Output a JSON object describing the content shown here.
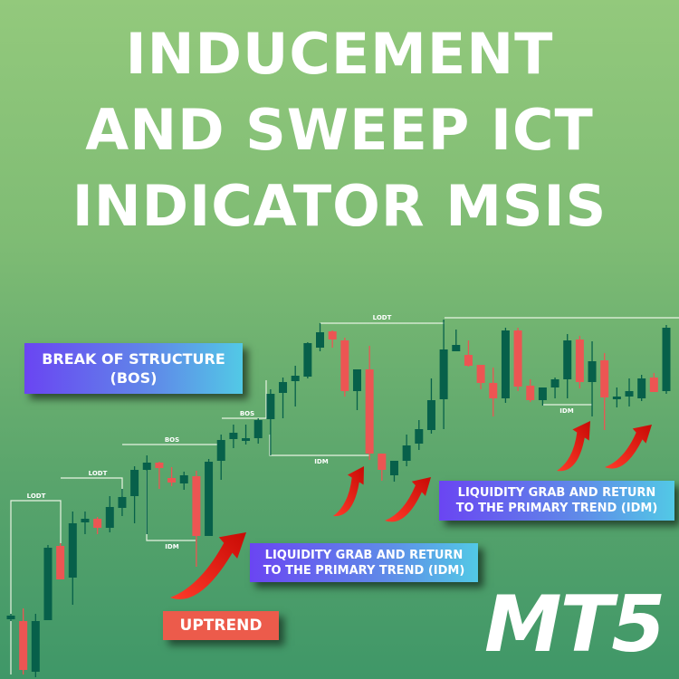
{
  "title": {
    "lines": [
      "INDUCEMENT",
      "AND SWEEP ICT",
      "INDICATOR MSIS"
    ]
  },
  "labels": {
    "bos_box": [
      "BREAK OF STRUCTURE",
      "(BOS)"
    ],
    "liquidity_box_1": [
      "LIQUIDITY GRAB AND RETURN",
      "TO THE PRIMARY TREND (IDM)"
    ],
    "liquidity_box_2": [
      "LIQUIDITY GRAB AND RETURN",
      "TO THE PRIMARY TREND (IDM)"
    ],
    "uptrend": "UPTREND",
    "platform": "MT5"
  },
  "colors": {
    "bullish": "#07604a",
    "bearish": "#ec5553",
    "arrow": "#e0140c",
    "box_gradient_start": "#6a45f2",
    "box_gradient_end": "#52c9e6",
    "uptrend_box": "#ec5b4b"
  },
  "chart_data": {
    "type": "candlestick",
    "title": "",
    "xlabel": "",
    "ylabel": "",
    "grid": false,
    "candles_ohlc": [
      [
        66,
        72,
        64,
        70
      ],
      [
        64,
        78,
        5,
        10
      ],
      [
        8,
        72,
        2,
        64
      ],
      [
        65,
        148,
        65,
        145
      ],
      [
        147,
        150,
        110,
        110
      ],
      [
        112,
        185,
        82,
        172
      ],
      [
        173,
        185,
        160,
        177
      ],
      [
        177,
        179,
        160,
        167
      ],
      [
        167,
        202,
        162,
        190
      ],
      [
        189,
        210,
        180,
        201
      ],
      [
        202,
        235,
        172,
        231
      ],
      [
        231,
        247,
        160,
        239
      ],
      [
        239,
        240,
        210,
        233
      ],
      [
        222,
        234,
        213,
        217
      ],
      [
        216,
        229,
        209,
        225
      ],
      [
        224,
        230,
        124,
        158
      ],
      [
        158,
        243,
        158,
        240
      ],
      [
        241,
        270,
        220,
        264
      ],
      [
        265,
        281,
        255,
        272
      ],
      [
        263,
        281,
        259,
        266
      ],
      [
        266,
        288,
        260,
        286
      ],
      [
        287,
        320,
        247,
        315
      ],
      [
        316,
        333,
        288,
        328
      ],
      [
        329,
        346,
        301,
        335
      ],
      [
        334,
        372,
        332,
        371
      ],
      [
        366,
        393,
        362,
        383
      ],
      [
        384,
        385,
        366,
        375
      ],
      [
        374,
        377,
        312,
        318
      ],
      [
        318,
        342,
        297,
        342
      ],
      [
        342,
        368,
        242,
        249
      ],
      [
        249,
        249,
        219,
        231
      ],
      [
        225,
        241,
        218,
        241
      ],
      [
        241,
        270,
        235,
        258
      ],
      [
        260,
        286,
        253,
        276
      ],
      [
        275,
        332,
        271,
        308
      ],
      [
        309,
        397,
        276,
        364
      ],
      [
        362,
        386,
        362,
        369
      ],
      [
        358,
        374,
        345,
        346
      ],
      [
        347,
        347,
        320,
        327
      ],
      [
        327,
        344,
        290,
        310
      ],
      [
        310,
        388,
        305,
        385
      ],
      [
        385,
        388,
        318,
        323
      ],
      [
        324,
        331,
        306,
        308
      ],
      [
        308,
        322,
        302,
        322
      ],
      [
        322,
        333,
        310,
        331
      ],
      [
        331,
        381,
        310,
        374
      ],
      [
        375,
        379,
        321,
        328
      ],
      [
        328,
        373,
        290,
        351
      ],
      [
        352,
        360,
        275,
        311
      ],
      [
        309,
        322,
        300,
        312
      ],
      [
        312,
        332,
        301,
        318
      ],
      [
        310,
        336,
        307,
        332
      ],
      [
        333,
        338,
        317,
        317
      ],
      [
        318,
        391,
        315,
        388
      ]
    ],
    "level_labels": [
      "LODT",
      "LODT",
      "BOS",
      "BOS",
      "IDM",
      "IDM",
      "LODT",
      "IDM"
    ]
  }
}
